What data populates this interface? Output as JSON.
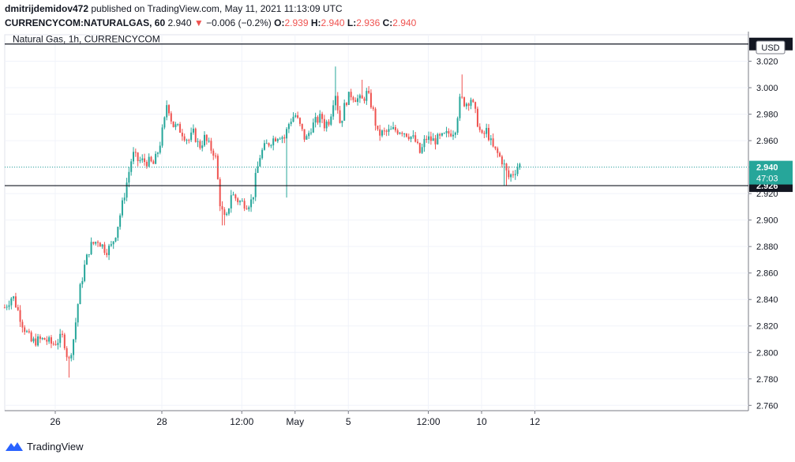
{
  "header": {
    "publisher": "dmitrijdemidov472",
    "published_text": "published on TradingView.com, May 11, 2021 11:13:09 UTC",
    "symbol": "CURRENCYCOM:NATURALGAS, 60",
    "last": "2.940",
    "change": "−0.006 (−0.2%)",
    "o_label": "O:",
    "o": "2.939",
    "h_label": "H:",
    "h": "2.940",
    "l_label": "L:",
    "l": "2.936",
    "c_label": "C:",
    "c": "2.940"
  },
  "chart_title": "Natural Gas, 1h, CURRENCYCOM",
  "currency": "USD",
  "footer_brand": "TradingView",
  "colors": {
    "up": "#26a69a",
    "down": "#ef5350",
    "grid": "#f0f3fa",
    "axis_text": "#131722"
  },
  "chart_data": {
    "type": "candlestick",
    "title": "Natural Gas, 1h, CURRENCYCOM",
    "ylim": [
      2.756,
      3.04
    ],
    "y_ticks": [
      "2.760",
      "2.780",
      "2.800",
      "2.820",
      "2.840",
      "2.860",
      "2.880",
      "2.900",
      "2.920",
      "2.940",
      "2.960",
      "2.980",
      "3.000",
      "3.020"
    ],
    "x_ticks": [
      {
        "label": "26",
        "x": 0.0
      },
      {
        "label": "28",
        "x": 2.0
      },
      {
        "label": "12:00",
        "x": 3.5
      },
      {
        "label": "May",
        "x": 4.5
      },
      {
        "label": "5",
        "x": 5.5
      },
      {
        "label": "12:00",
        "x": 7.0
      },
      {
        "label": "10",
        "x": 8.0
      },
      {
        "label": "12",
        "x": 9.0
      }
    ],
    "current_price": {
      "value": 2.94,
      "label": "2.940",
      "countdown": "47:03"
    },
    "horizontal_lines": [
      {
        "value": 3.033,
        "label": "3.033"
      },
      {
        "value": 2.926,
        "label": "2.926"
      }
    ],
    "close_path": [
      [
        -0.95,
        2.834
      ],
      [
        -0.8,
        2.843
      ],
      [
        -0.6,
        2.82
      ],
      [
        -0.45,
        2.808
      ],
      [
        -0.2,
        2.81
      ],
      [
        -0.05,
        2.806
      ],
      [
        0.15,
        2.812
      ],
      [
        0.25,
        2.792
      ],
      [
        0.35,
        2.812
      ],
      [
        0.45,
        2.845
      ],
      [
        0.55,
        2.865
      ],
      [
        0.65,
        2.88
      ],
      [
        0.8,
        2.885
      ],
      [
        0.95,
        2.877
      ],
      [
        1.05,
        2.88
      ],
      [
        1.15,
        2.892
      ],
      [
        1.25,
        2.91
      ],
      [
        1.35,
        2.93
      ],
      [
        1.45,
        2.95
      ],
      [
        1.55,
        2.945
      ],
      [
        1.75,
        2.944
      ],
      [
        1.85,
        2.942
      ],
      [
        1.95,
        2.955
      ],
      [
        2.05,
        2.975
      ],
      [
        2.1,
        2.99
      ],
      [
        2.2,
        2.972
      ],
      [
        2.35,
        2.968
      ],
      [
        2.5,
        2.96
      ],
      [
        2.6,
        2.966
      ],
      [
        2.7,
        2.955
      ],
      [
        2.8,
        2.962
      ],
      [
        2.9,
        2.955
      ],
      [
        3.0,
        2.95
      ],
      [
        3.1,
        2.91
      ],
      [
        3.2,
        2.898
      ],
      [
        3.3,
        2.92
      ],
      [
        3.45,
        2.914
      ],
      [
        3.6,
        2.912
      ],
      [
        3.7,
        2.915
      ],
      [
        3.75,
        2.93
      ],
      [
        3.85,
        2.95
      ],
      [
        3.95,
        2.956
      ],
      [
        4.05,
        2.96
      ],
      [
        4.2,
        2.965
      ],
      [
        4.3,
        2.962
      ],
      [
        4.4,
        2.975
      ],
      [
        4.5,
        2.98
      ],
      [
        4.6,
        2.97
      ],
      [
        4.7,
        2.96
      ],
      [
        4.8,
        2.97
      ],
      [
        4.9,
        2.975
      ],
      [
        5.0,
        2.978
      ],
      [
        5.05,
        2.972
      ],
      [
        5.15,
        2.976
      ],
      [
        5.25,
        2.998
      ],
      [
        5.35,
        2.972
      ],
      [
        5.45,
        2.99
      ],
      [
        5.55,
        2.995
      ],
      [
        5.65,
        2.992
      ],
      [
        5.75,
        2.99
      ],
      [
        5.85,
        2.996
      ],
      [
        5.95,
        2.985
      ],
      [
        6.05,
        2.965
      ],
      [
        6.2,
        2.966
      ],
      [
        6.35,
        2.968
      ],
      [
        6.5,
        2.968
      ],
      [
        6.65,
        2.964
      ],
      [
        6.75,
        2.96
      ],
      [
        6.85,
        2.95
      ],
      [
        6.95,
        2.962
      ],
      [
        7.1,
        2.96
      ],
      [
        7.25,
        2.962
      ],
      [
        7.4,
        2.966
      ],
      [
        7.5,
        2.968
      ],
      [
        7.6,
        2.992
      ],
      [
        7.7,
        2.988
      ],
      [
        7.8,
        2.992
      ],
      [
        7.9,
        2.978
      ],
      [
        8.0,
        2.962
      ],
      [
        8.1,
        2.968
      ],
      [
        8.2,
        2.955
      ],
      [
        8.3,
        2.95
      ],
      [
        8.4,
        2.944
      ],
      [
        8.5,
        2.932
      ],
      [
        8.6,
        2.936
      ],
      [
        8.7,
        2.942
      ],
      [
        8.75,
        2.94
      ]
    ],
    "notable_wicks": [
      {
        "x": 0.27,
        "low": 2.781
      },
      {
        "x": 3.15,
        "low": 2.896
      },
      {
        "x": 4.35,
        "low": 2.917
      },
      {
        "x": 5.25,
        "high": 3.016
      },
      {
        "x": 5.75,
        "high": 3.006
      },
      {
        "x": 7.65,
        "high": 3.01
      },
      {
        "x": 8.45,
        "low": 2.926
      }
    ]
  }
}
